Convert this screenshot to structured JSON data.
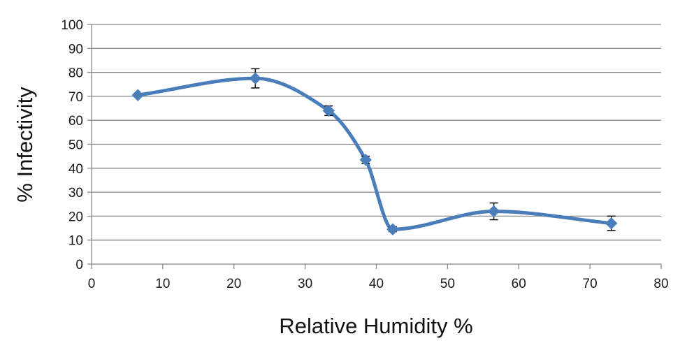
{
  "chart_data": {
    "type": "line",
    "title": "",
    "xlabel": "Relative Humidity %",
    "ylabel": "% Infectivity",
    "xlim": [
      0,
      80
    ],
    "ylim": [
      0,
      100
    ],
    "xticks": [
      0,
      10,
      20,
      30,
      40,
      50,
      60,
      70,
      80
    ],
    "yticks": [
      0,
      10,
      20,
      30,
      40,
      50,
      60,
      70,
      80,
      90,
      100
    ],
    "grid": "horizontal",
    "legend": "none",
    "line_style": "smoothed",
    "marker": "diamond",
    "colors": {
      "series": "#4a7ebb",
      "gridline": "#888888",
      "axis": "#888888",
      "error_bar": "#000000"
    },
    "series": [
      {
        "x": [
          6.5,
          23,
          33.3,
          38.5,
          42.3,
          56.5,
          73
        ],
        "y": [
          70.5,
          77.5,
          64,
          43.5,
          14.5,
          22,
          17
        ],
        "error": [
          0,
          4,
          2,
          1.5,
          1,
          3.5,
          3
        ]
      }
    ]
  }
}
